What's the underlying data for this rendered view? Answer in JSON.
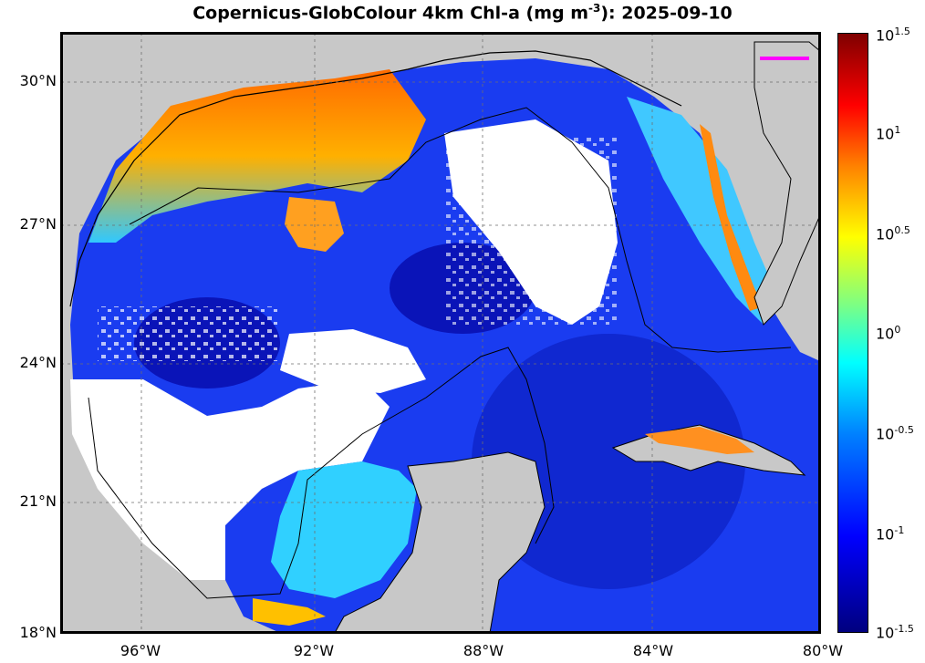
{
  "title": {
    "prefix": "Copernicus-GlobColour 4km Chl-a (mg m",
    "exponent": "-3",
    "suffix": "): 2025-09-10"
  },
  "map": {
    "lat_labels": [
      "30°N",
      "27°N",
      "24°N",
      "21°N",
      "18°N"
    ],
    "lon_labels": [
      "96°W",
      "92°W",
      "88°W",
      "84°W",
      "80°W"
    ],
    "lat_range": [
      18,
      31
    ],
    "lon_range": [
      -98,
      -80
    ],
    "colors": {
      "land": "#c8c8c8",
      "no_data": "#ffffff",
      "frame": "#000000",
      "marker": "#ff00ff"
    }
  },
  "colorbar": {
    "base": "10",
    "exponents": [
      "1.5",
      "1",
      "0.5",
      "0",
      "-0.5",
      "-1",
      "-1.5"
    ],
    "scale": "log"
  }
}
